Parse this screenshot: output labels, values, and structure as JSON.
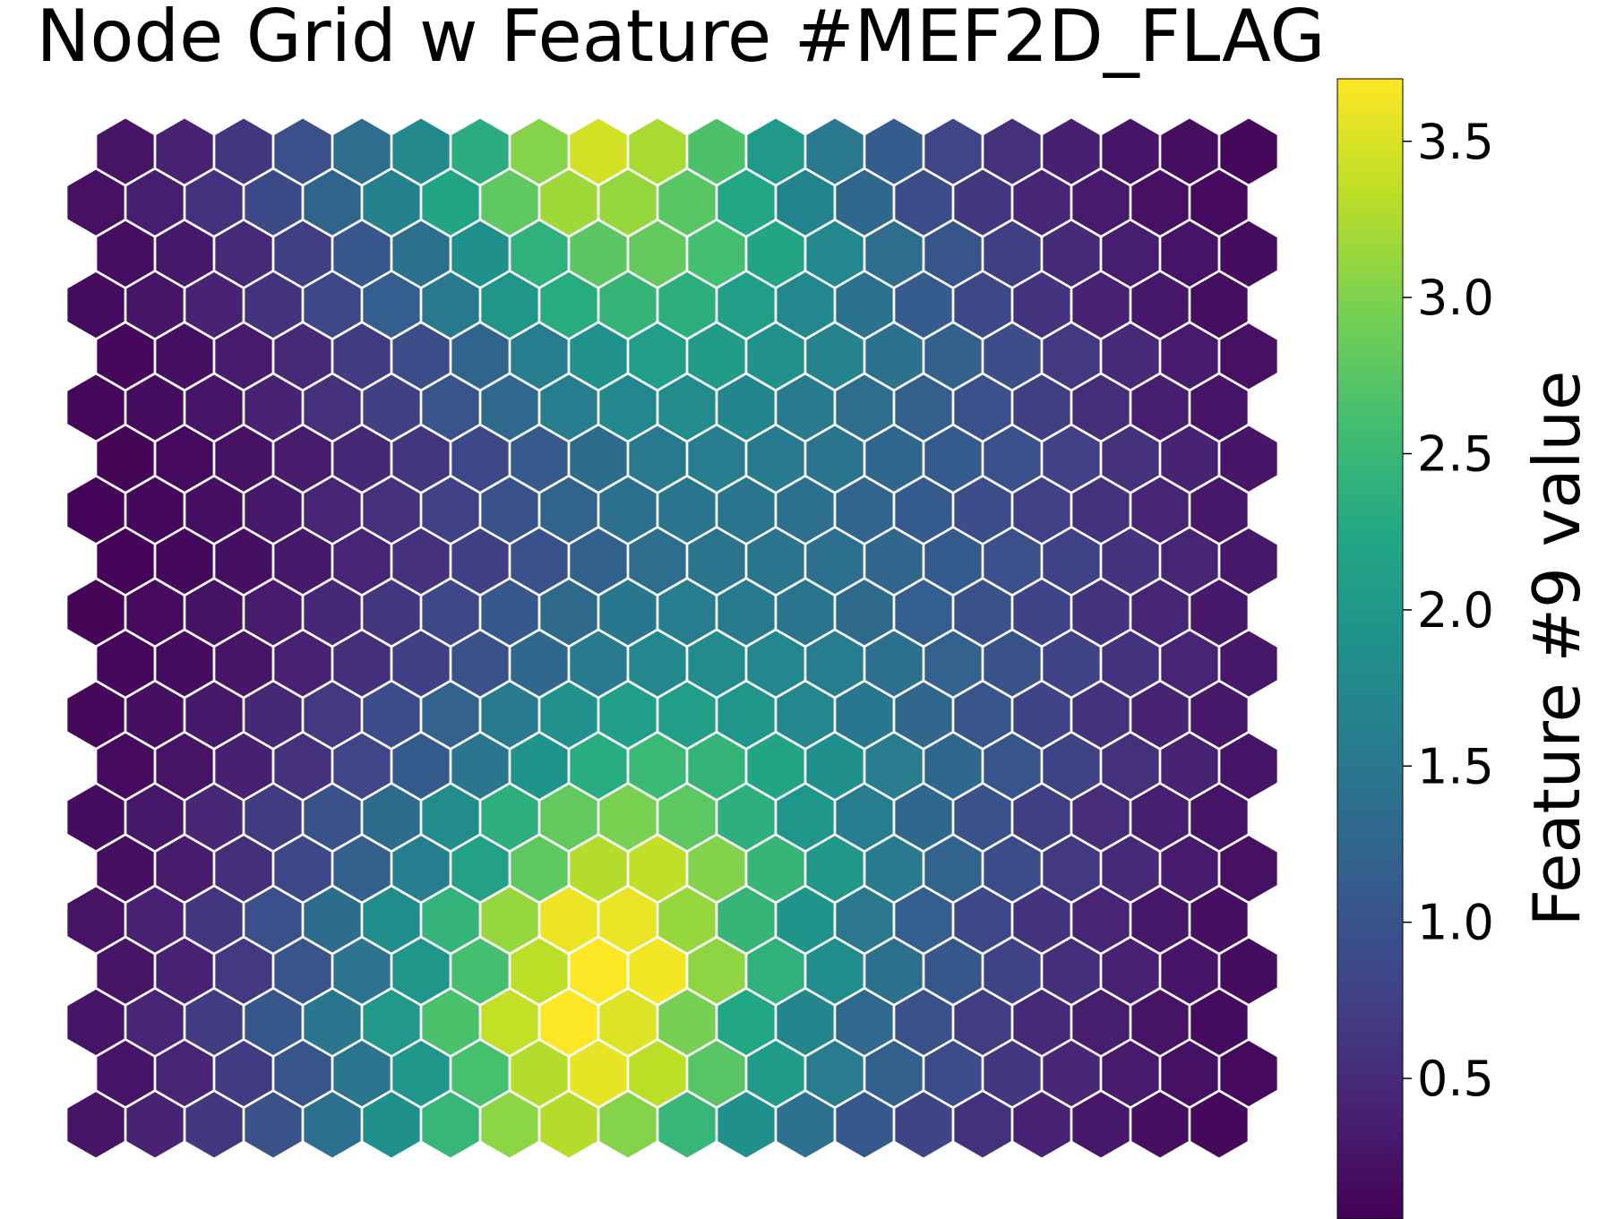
{
  "chart_data": {
    "type": "heatmap",
    "title": "Node Grid w Feature #MEF2D_FLAG",
    "colorbar": {
      "label": "Feature #9 value",
      "colormap": "viridis",
      "range": [
        0.05,
        3.7
      ],
      "ticks": [
        "0.5",
        "1.0",
        "1.5",
        "2.0",
        "2.5",
        "3.0",
        "3.5"
      ],
      "tick_values": [
        0.5,
        1.0,
        1.5,
        2.0,
        2.5,
        3.0,
        3.5
      ]
    },
    "grid": {
      "rows": 20,
      "cols": 20,
      "layout": "hexagonal"
    },
    "values": [
      [
        0.26,
        0.4,
        0.63,
        0.94,
        1.35,
        1.77,
        2.34,
        3.03,
        3.46,
        3.23,
        2.67,
        2.02,
        1.51,
        1.13,
        0.81,
        0.56,
        0.38,
        0.27,
        0.19,
        0.13
      ],
      [
        0.22,
        0.36,
        0.58,
        0.87,
        1.23,
        1.66,
        2.21,
        2.79,
        3.17,
        3.13,
        2.75,
        2.22,
        1.7,
        1.27,
        0.92,
        0.65,
        0.45,
        0.32,
        0.22,
        0.15
      ],
      [
        0.19,
        0.31,
        0.49,
        0.73,
        1.04,
        1.4,
        1.88,
        2.39,
        2.76,
        2.82,
        2.6,
        2.2,
        1.76,
        1.36,
        1.02,
        0.73,
        0.51,
        0.36,
        0.25,
        0.17
      ],
      [
        0.16,
        0.26,
        0.4,
        0.6,
        0.85,
        1.14,
        1.53,
        1.96,
        2.31,
        2.45,
        2.36,
        2.09,
        1.75,
        1.42,
        1.12,
        0.83,
        0.6,
        0.42,
        0.29,
        0.19
      ],
      [
        0.13,
        0.21,
        0.33,
        0.49,
        0.69,
        0.92,
        1.23,
        1.59,
        1.91,
        2.08,
        2.07,
        1.91,
        1.68,
        1.42,
        1.17,
        0.91,
        0.67,
        0.48,
        0.33,
        0.22
      ],
      [
        0.11,
        0.17,
        0.27,
        0.4,
        0.56,
        0.75,
        1.0,
        1.3,
        1.58,
        1.76,
        1.8,
        1.72,
        1.56,
        1.36,
        1.16,
        0.95,
        0.73,
        0.53,
        0.37,
        0.25
      ],
      [
        0.1,
        0.15,
        0.23,
        0.34,
        0.47,
        0.63,
        0.84,
        1.09,
        1.34,
        1.52,
        1.59,
        1.56,
        1.45,
        1.29,
        1.12,
        0.94,
        0.76,
        0.57,
        0.41,
        0.28
      ],
      [
        0.09,
        0.14,
        0.21,
        0.31,
        0.43,
        0.57,
        0.76,
        0.98,
        1.21,
        1.39,
        1.47,
        1.47,
        1.39,
        1.25,
        1.1,
        0.93,
        0.76,
        0.59,
        0.43,
        0.3
      ],
      [
        0.09,
        0.14,
        0.21,
        0.31,
        0.43,
        0.57,
        0.75,
        0.97,
        1.19,
        1.37,
        1.46,
        1.46,
        1.39,
        1.26,
        1.11,
        0.94,
        0.77,
        0.6,
        0.44,
        0.31
      ],
      [
        0.1,
        0.15,
        0.23,
        0.34,
        0.47,
        0.63,
        0.83,
        1.07,
        1.31,
        1.5,
        1.58,
        1.56,
        1.46,
        1.31,
        1.15,
        0.97,
        0.78,
        0.6,
        0.44,
        0.31
      ],
      [
        0.11,
        0.17,
        0.26,
        0.39,
        0.55,
        0.74,
        0.98,
        1.27,
        1.55,
        1.75,
        1.81,
        1.74,
        1.59,
        1.4,
        1.2,
        0.99,
        0.79,
        0.6,
        0.43,
        0.3
      ],
      [
        0.13,
        0.2,
        0.31,
        0.47,
        0.66,
        0.89,
        1.2,
        1.56,
        1.89,
        2.09,
        2.1,
        1.96,
        1.74,
        1.5,
        1.26,
        1.02,
        0.79,
        0.59,
        0.42,
        0.29
      ],
      [
        0.15,
        0.24,
        0.38,
        0.57,
        0.81,
        1.1,
        1.48,
        1.93,
        2.32,
        2.52,
        2.45,
        2.19,
        1.88,
        1.57,
        1.29,
        1.02,
        0.77,
        0.56,
        0.4,
        0.27
      ],
      [
        0.18,
        0.29,
        0.46,
        0.69,
        0.99,
        1.34,
        1.81,
        2.36,
        2.81,
        2.97,
        2.78,
        2.37,
        1.96,
        1.59,
        1.27,
        0.98,
        0.73,
        0.52,
        0.37,
        0.25
      ],
      [
        0.21,
        0.34,
        0.55,
        0.83,
        1.18,
        1.6,
        2.15,
        2.79,
        3.28,
        3.36,
        3.02,
        2.47,
        1.98,
        1.56,
        1.22,
        0.92,
        0.67,
        0.48,
        0.33,
        0.22
      ],
      [
        0.24,
        0.39,
        0.62,
        0.94,
        1.34,
        1.82,
        2.43,
        3.13,
        3.61,
        3.59,
        3.13,
        2.47,
        1.92,
        1.49,
        1.14,
        0.85,
        0.61,
        0.43,
        0.3,
        0.2
      ],
      [
        0.26,
        0.42,
        0.67,
        1.01,
        1.44,
        1.95,
        2.61,
        3.33,
        3.74,
        3.63,
        3.09,
        2.38,
        1.83,
        1.4,
        1.05,
        0.77,
        0.55,
        0.39,
        0.27,
        0.18
      ],
      [
        0.27,
        0.43,
        0.69,
        1.04,
        1.48,
        2.0,
        2.66,
        3.37,
        3.72,
        3.53,
        2.95,
        2.24,
        1.71,
        1.3,
        0.97,
        0.71,
        0.5,
        0.35,
        0.24,
        0.16
      ],
      [
        0.27,
        0.43,
        0.68,
        1.03,
        1.46,
        1.97,
        2.62,
        3.28,
        3.57,
        3.33,
        2.74,
        2.06,
        1.57,
        1.19,
        0.89,
        0.65,
        0.46,
        0.32,
        0.22,
        0.15
      ],
      [
        0.26,
        0.41,
        0.65,
        0.98,
        1.39,
        1.88,
        2.48,
        3.07,
        3.29,
        3.03,
        2.48,
        1.87,
        1.42,
        1.07,
        0.8,
        0.58,
        0.41,
        0.29,
        0.2,
        0.13
      ]
    ]
  }
}
